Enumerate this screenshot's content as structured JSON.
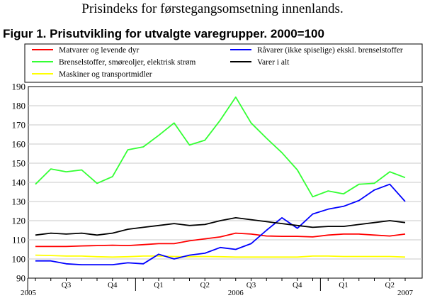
{
  "header": {
    "top_title": "Prisindeks for førstegangsomsetning innenlands.",
    "figure_title": "Figur 1. Prisutvikling for utvalgte varegrupper. 2000=100"
  },
  "chart_data": {
    "type": "line",
    "title": "Figur 1. Prisutvikling for utvalgte varegrupper. 2000=100",
    "xlabel": "",
    "ylabel": "",
    "ylim": [
      90,
      190
    ],
    "y_ticks": [
      90,
      100,
      110,
      120,
      130,
      140,
      150,
      160,
      170,
      180,
      190
    ],
    "grid": true,
    "legend_position": "top",
    "x": [
      "2005-06",
      "2005-07",
      "2005-08",
      "2005-09",
      "2005-10",
      "2005-11",
      "2005-12",
      "2006-01",
      "2006-02",
      "2006-03",
      "2006-04",
      "2006-05",
      "2006-06",
      "2006-07",
      "2006-08",
      "2006-09",
      "2006-10",
      "2006-11",
      "2006-12",
      "2007-01",
      "2007-02",
      "2007-03",
      "2007-04",
      "2007-05",
      "2007-06"
    ],
    "x_tick_labels": [
      {
        "label": "Q3",
        "at": "2005-08"
      },
      {
        "label": "Q4",
        "at": "2005-11"
      },
      {
        "label": "Q1",
        "at": "2006-02"
      },
      {
        "label": "Q2",
        "at": "2006-05"
      },
      {
        "label": "Q3",
        "at": "2006-08"
      },
      {
        "label": "Q4",
        "at": "2006-11"
      },
      {
        "label": "Q1",
        "at": "2007-02"
      },
      {
        "label": "Q2",
        "at": "2007-05"
      }
    ],
    "x_year_labels": [
      {
        "label": "2005",
        "at": "start"
      },
      {
        "label": "2006",
        "at": "2006-07"
      },
      {
        "label": "2007",
        "at": "2007-06"
      }
    ],
    "series": [
      {
        "name": "Matvarer og levende dyr",
        "color": "#ff0000",
        "values": [
          106.5,
          106.5,
          106.5,
          106.8,
          107.0,
          107.2,
          107.0,
          107.5,
          108.0,
          108.0,
          109.5,
          110.5,
          111.5,
          113.5,
          113.0,
          112.0,
          111.8,
          111.8,
          111.5,
          112.5,
          113.0,
          113.0,
          112.5,
          112.0,
          113.0
        ]
      },
      {
        "name": "Brenselstoffer, smøreoljer, elektrisk strøm",
        "color": "#33ff33",
        "values": [
          139.0,
          147.0,
          145.5,
          146.5,
          139.5,
          143.0,
          157.0,
          158.5,
          164.5,
          171.0,
          159.5,
          162.0,
          172.5,
          184.5,
          171.0,
          163.0,
          155.5,
          146.5,
          132.5,
          135.5,
          134.0,
          139.0,
          139.5,
          145.5,
          142.5
        ]
      },
      {
        "name": "Maskiner og transportmidler",
        "color": "#ffff00",
        "values": [
          102.0,
          101.8,
          101.5,
          101.5,
          101.2,
          101.0,
          101.2,
          101.5,
          101.5,
          101.3,
          101.2,
          101.3,
          101.2,
          101.0,
          101.0,
          101.0,
          101.0,
          101.0,
          101.5,
          101.5,
          101.3,
          101.3,
          101.3,
          101.3,
          101.0
        ]
      },
      {
        "name": "Råvarer (ikke spiselige) ekskl. brenselstoffer",
        "color": "#0000ff",
        "values": [
          99.0,
          99.0,
          97.5,
          97.0,
          97.0,
          97.0,
          98.0,
          97.5,
          102.5,
          100.0,
          102.0,
          103.0,
          106.0,
          105.0,
          108.0,
          115.0,
          121.5,
          116.0,
          123.5,
          126.0,
          127.5,
          130.5,
          136.0,
          139.0,
          130.0
        ]
      },
      {
        "name": "Varer i alt",
        "color": "#000000",
        "values": [
          112.5,
          113.5,
          113.0,
          113.5,
          112.5,
          113.5,
          115.5,
          116.5,
          117.5,
          118.5,
          117.5,
          118.0,
          120.0,
          121.5,
          120.5,
          119.5,
          118.5,
          117.5,
          116.5,
          117.0,
          117.0,
          118.0,
          119.0,
          120.0,
          119.0
        ]
      }
    ]
  }
}
